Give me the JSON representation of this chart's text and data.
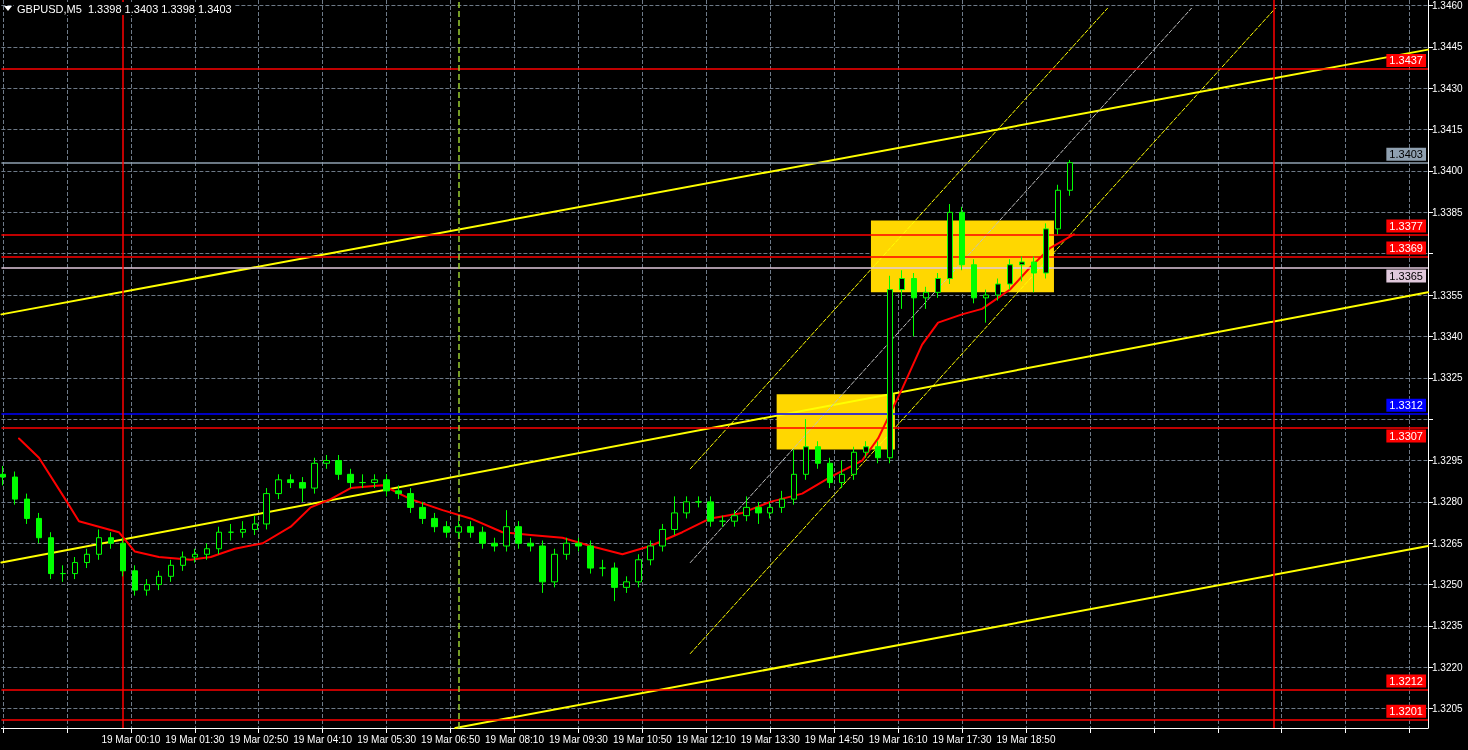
{
  "chart_data": {
    "type": "candlestick",
    "title": "GBPUSD,M5  1.3398 1.3403 1.3398 1.3403",
    "xlim": [
      "--03-18T21:28",
      "--03-20T03:13"
    ],
    "ylim": [
      1.3198,
      1.3462
    ],
    "xticks": [
      {
        "value": "--03-18T21:30",
        "label": null
      },
      {
        "value": "--03-18T22:50",
        "label": null
      },
      {
        "value": "--03-19T00:10",
        "label": "19 Mar 00:10"
      },
      {
        "value": "--03-19T01:30",
        "label": "19 Mar 01:30"
      },
      {
        "value": "--03-19T02:50",
        "label": "19 Mar 02:50"
      },
      {
        "value": "--03-19T04:10",
        "label": "19 Mar 04:10"
      },
      {
        "value": "--03-19T05:30",
        "label": "19 Mar 05:30"
      },
      {
        "value": "--03-19T06:50",
        "label": "19 Mar 06:50"
      },
      {
        "value": "--03-19T08:10",
        "label": "19 Mar 08:10"
      },
      {
        "value": "--03-19T09:30",
        "label": "19 Mar 09:30"
      },
      {
        "value": "--03-19T10:50",
        "label": "19 Mar 10:50"
      },
      {
        "value": "--03-19T12:10",
        "label": "19 Mar 12:10"
      },
      {
        "value": "--03-19T13:30",
        "label": "19 Mar 13:30"
      },
      {
        "value": "--03-19T14:50",
        "label": "19 Mar 14:50"
      },
      {
        "value": "--03-19T16:10",
        "label": "19 Mar 16:10"
      },
      {
        "value": "--03-19T17:30",
        "label": "19 Mar 17:30"
      },
      {
        "value": "--03-19T18:50",
        "label": "19 Mar 18:50"
      },
      {
        "value": "--03-19T20:10",
        "label": null
      },
      {
        "value": "--03-19T21:30",
        "label": null
      },
      {
        "value": "--03-19T22:50",
        "label": null
      },
      {
        "value": "--03-20T00:10",
        "label": null
      },
      {
        "value": "--03-20T01:30",
        "label": null
      },
      {
        "value": "--03-20T02:50",
        "label": null
      }
    ],
    "yticks": [
      1.3205,
      {
        "value": 1.322,
        "label": "1.3220"
      },
      1.3235,
      {
        "value": 1.325,
        "label": "1.3250"
      },
      1.3265,
      {
        "value": 1.328,
        "label": "1.3280"
      },
      1.3295,
      {
        "value": 1.331,
        "label": null
      },
      1.3325,
      {
        "value": 1.334,
        "label": "1.3340"
      },
      1.3355,
      {
        "value": 1.337,
        "label": null
      },
      1.3385,
      {
        "value": 1.34,
        "label": "1.3400"
      },
      1.3415,
      {
        "value": 1.343,
        "label": "1.3430"
      },
      1.3445,
      {
        "value": 1.346,
        "label": "1.3460"
      }
    ],
    "grid": true,
    "series": [
      {
        "type": "line",
        "color": "#ffd700",
        "x": [
          "--03-19T13:38",
          "--03-19T16:06"
        ],
        "values": [
          null,
          null
        ],
        "lower": [
          1.3299,
          1.3299
        ],
        "upper": [
          1.3319,
          1.3319
        ]
      },
      {
        "type": "line",
        "color": "#ffd700",
        "x": [
          "--03-19T15:36",
          "--03-19T19:25"
        ],
        "values": [
          null,
          null
        ],
        "lower": [
          1.3356,
          1.3356
        ],
        "upper": [
          1.3382,
          1.3382
        ]
      },
      {
        "type": "line",
        "color": "#ffff00",
        "line_style": "solid",
        "x": [
          "--03-18T21:28",
          "--03-20T03:13"
        ],
        "values": [
          1.3348,
          1.3444
        ]
      },
      {
        "type": "line",
        "color": "#ffff00",
        "line_style": "solid",
        "x": [
          "--03-18T21:28",
          "--03-20T03:13"
        ],
        "values": [
          1.3258,
          1.3356
        ]
      },
      {
        "type": "line",
        "color": "#ffff00",
        "line_style": "solid",
        "x": [
          "--03-19T06:56",
          "--03-20T03:13"
        ],
        "values": [
          1.3198,
          1.3264
        ]
      },
      {
        "type": "line",
        "color": "#ffff00",
        "line_style": "dashed",
        "x": [
          "--03-19T11:50",
          "--03-19T20:32"
        ],
        "values": [
          1.3292,
          1.3459
        ]
      },
      {
        "type": "line",
        "color": "#c0c0c0",
        "line_style": "dashed",
        "x": [
          "--03-19T11:50",
          "--03-19T22:17"
        ],
        "values": [
          1.3258,
          1.3459
        ]
      },
      {
        "type": "line",
        "color": "#ffff00",
        "line_style": "dashed",
        "x": [
          "--03-19T11:50",
          "--03-20T00:02"
        ],
        "values": [
          1.3225,
          1.3459
        ]
      },
      {
        "type": "line",
        "color": "#ff0000",
        "line_style": "solid",
        "x": [
          "--03-18T21:50",
          "--03-18T22:15",
          "--03-18T22:50",
          "--03-18T23:05",
          "--03-18T23:30",
          "--03-18T23:55",
          "--03-19T00:15",
          "--03-19T00:45",
          "--03-19T01:25",
          "--03-19T01:50",
          "--03-19T02:20",
          "--03-19T02:55",
          "--03-19T03:30",
          "--03-19T03:55",
          "--03-19T04:20",
          "--03-19T04:45",
          "--03-19T05:25",
          "--03-19T06:00",
          "--03-19T06:40",
          "--03-19T07:15",
          "--03-19T07:55",
          "--03-19T08:30",
          "--03-19T09:10",
          "--03-19T09:45",
          "--03-19T10:25",
          "--03-19T11:00",
          "--03-19T11:40",
          "--03-19T12:15",
          "--03-19T12:55",
          "--03-19T13:30",
          "--03-19T14:10",
          "--03-19T14:45",
          "--03-19T15:25",
          "--03-19T15:45",
          "--03-19T16:15",
          "--03-19T16:40",
          "--03-19T17:00",
          "--03-19T17:30",
          "--03-19T17:55",
          "--03-19T18:15",
          "--03-19T18:30",
          "--03-19T18:55",
          "--03-19T19:20",
          "--03-19T19:50"
        ],
        "values": [
          1.3303,
          1.3296,
          1.328,
          1.3273,
          1.3271,
          1.3269,
          1.3262,
          1.326,
          1.3259,
          1.326,
          1.3263,
          1.3265,
          1.3271,
          1.3278,
          1.3281,
          1.3285,
          1.3286,
          1.3281,
          1.3277,
          1.3274,
          1.3269,
          1.3268,
          1.3267,
          1.3264,
          1.3261,
          1.3264,
          1.3269,
          1.3274,
          1.3276,
          1.328,
          1.3283,
          1.3289,
          1.3295,
          1.3303,
          1.3321,
          1.3337,
          1.3345,
          1.3348,
          1.335,
          1.3354,
          1.3357,
          1.3365,
          1.3372,
          1.3377
        ]
      },
      {
        "color": "#00ff00",
        "x": [
          "--03-18T21:30",
          "--03-18T21:45",
          "--03-18T22:00",
          "--03-18T22:15",
          "--03-18T22:30",
          "--03-18T22:45",
          "--03-18T23:00",
          "--03-18T23:15",
          "--03-18T23:30",
          "--03-18T23:45",
          "--03-19T00:00",
          "--03-19T00:15",
          "--03-19T00:30",
          "--03-19T00:45",
          "--03-19T01:00",
          "--03-19T01:15",
          "--03-19T01:30",
          "--03-19T01:45",
          "--03-19T02:00",
          "--03-19T02:15",
          "--03-19T02:30",
          "--03-19T02:45",
          "--03-19T03:00",
          "--03-19T03:15",
          "--03-19T03:30",
          "--03-19T03:45",
          "--03-19T04:00",
          "--03-19T04:15",
          "--03-19T04:30",
          "--03-19T04:45",
          "--03-19T05:00",
          "--03-19T05:15",
          "--03-19T05:30",
          "--03-19T05:45",
          "--03-19T06:00",
          "--03-19T06:15",
          "--03-19T06:30",
          "--03-19T06:45",
          "--03-19T07:00",
          "--03-19T07:15",
          "--03-19T07:30",
          "--03-19T07:45",
          "--03-19T08:00",
          "--03-19T08:15",
          "--03-19T08:30",
          "--03-19T08:45",
          "--03-19T09:00",
          "--03-19T09:15",
          "--03-19T09:30",
          "--03-19T09:45",
          "--03-19T10:00",
          "--03-19T10:15",
          "--03-19T10:30",
          "--03-19T10:45",
          "--03-19T11:00",
          "--03-19T11:15",
          "--03-19T11:30",
          "--03-19T11:45",
          "--03-19T12:00",
          "--03-19T12:15",
          "--03-19T12:30",
          "--03-19T12:45",
          "--03-19T13:00",
          "--03-19T13:15",
          "--03-19T13:30",
          "--03-19T13:45",
          "--03-19T14:00",
          "--03-19T14:15",
          "--03-19T14:30",
          "--03-19T14:45",
          "--03-19T15:00",
          "--03-19T15:15",
          "--03-19T15:30",
          "--03-19T15:45",
          "--03-19T16:00",
          "--03-19T16:15",
          "--03-19T16:30",
          "--03-19T16:45",
          "--03-19T17:00",
          "--03-19T17:15",
          "--03-19T17:30",
          "--03-19T17:45",
          "--03-19T18:00",
          "--03-19T18:15",
          "--03-19T18:30",
          "--03-19T18:45",
          "--03-19T19:00",
          "--03-19T19:15",
          "--03-19T19:30",
          "--03-19T19:45"
        ],
        "ohlc": [
          [
            1.329,
            1.3293,
            1.3286,
            1.3289
          ],
          [
            1.3289,
            1.3291,
            1.3279,
            1.3281
          ],
          [
            1.3281,
            1.3283,
            1.3272,
            1.3274
          ],
          [
            1.3274,
            1.3276,
            1.3265,
            1.3267
          ],
          [
            1.3267,
            1.3269,
            1.3252,
            1.3254
          ],
          [
            1.3254,
            1.3257,
            1.3251,
            1.3254
          ],
          [
            1.3254,
            1.326,
            1.3252,
            1.3258
          ],
          [
            1.3258,
            1.3263,
            1.3256,
            1.3261
          ],
          [
            1.3261,
            1.327,
            1.3259,
            1.3267
          ],
          [
            1.3267,
            1.3269,
            1.3263,
            1.3265
          ],
          [
            1.3265,
            1.3267,
            1.3253,
            1.3255
          ],
          [
            1.3255,
            1.3257,
            1.3246,
            1.3248
          ],
          [
            1.3248,
            1.3252,
            1.3246,
            1.325
          ],
          [
            1.325,
            1.3255,
            1.3248,
            1.3253
          ],
          [
            1.3253,
            1.3259,
            1.3251,
            1.3257
          ],
          [
            1.3257,
            1.3262,
            1.3255,
            1.326
          ],
          [
            1.326,
            1.3263,
            1.3258,
            1.3261
          ],
          [
            1.3261,
            1.3265,
            1.3259,
            1.3263
          ],
          [
            1.3263,
            1.3271,
            1.3261,
            1.3269
          ],
          [
            1.3269,
            1.3272,
            1.3266,
            1.3269
          ],
          [
            1.3269,
            1.3273,
            1.3267,
            1.327
          ],
          [
            1.327,
            1.3275,
            1.3268,
            1.3272
          ],
          [
            1.3272,
            1.3285,
            1.327,
            1.3283
          ],
          [
            1.3283,
            1.329,
            1.3281,
            1.3288
          ],
          [
            1.3288,
            1.329,
            1.3285,
            1.3287
          ],
          [
            1.3287,
            1.3289,
            1.328,
            1.3285
          ],
          [
            1.3285,
            1.3296,
            1.3283,
            1.3294
          ],
          [
            1.3294,
            1.3297,
            1.3292,
            1.3295
          ],
          [
            1.3295,
            1.3297,
            1.3288,
            1.329
          ],
          [
            1.329,
            1.3292,
            1.3285,
            1.3287
          ],
          [
            1.3287,
            1.329,
            1.3285,
            1.3287
          ],
          [
            1.3287,
            1.329,
            1.3285,
            1.3288
          ],
          [
            1.3288,
            1.329,
            1.3282,
            1.3284
          ],
          [
            1.3284,
            1.3286,
            1.3281,
            1.3283
          ],
          [
            1.3283,
            1.3285,
            1.3276,
            1.3278
          ],
          [
            1.3278,
            1.328,
            1.3272,
            1.3274
          ],
          [
            1.3274,
            1.3276,
            1.3269,
            1.3271
          ],
          [
            1.3271,
            1.3273,
            1.3267,
            1.3269
          ],
          [
            1.3269,
            1.3273,
            1.3267,
            1.3271
          ],
          [
            1.3271,
            1.3273,
            1.3267,
            1.3269
          ],
          [
            1.3269,
            1.3271,
            1.3263,
            1.3265
          ],
          [
            1.3265,
            1.3267,
            1.3262,
            1.3264
          ],
          [
            1.3264,
            1.3277,
            1.3262,
            1.3271
          ],
          [
            1.3271,
            1.3273,
            1.3263,
            1.3265
          ],
          [
            1.3265,
            1.3267,
            1.3262,
            1.3264
          ],
          [
            1.3264,
            1.3266,
            1.3247,
            1.3251
          ],
          [
            1.3251,
            1.3263,
            1.3249,
            1.3261
          ],
          [
            1.3261,
            1.3267,
            1.3259,
            1.3265
          ],
          [
            1.3265,
            1.3267,
            1.3262,
            1.3264
          ],
          [
            1.3264,
            1.3266,
            1.3254,
            1.3256
          ],
          [
            1.3256,
            1.3259,
            1.3253,
            1.3256
          ],
          [
            1.3256,
            1.3258,
            1.3244,
            1.3249
          ],
          [
            1.3249,
            1.3253,
            1.3247,
            1.3251
          ],
          [
            1.3251,
            1.3261,
            1.3249,
            1.3259
          ],
          [
            1.3259,
            1.3266,
            1.3257,
            1.3264
          ],
          [
            1.3264,
            1.3272,
            1.3262,
            1.327
          ],
          [
            1.327,
            1.3282,
            1.3268,
            1.3276
          ],
          [
            1.3276,
            1.3282,
            1.3274,
            1.328
          ],
          [
            1.328,
            1.3282,
            1.3278,
            1.328
          ],
          [
            1.328,
            1.3282,
            1.3271,
            1.3273
          ],
          [
            1.3273,
            1.3275,
            1.3271,
            1.3273
          ],
          [
            1.3273,
            1.3277,
            1.3271,
            1.3275
          ],
          [
            1.3275,
            1.3282,
            1.3273,
            1.3278
          ],
          [
            1.3278,
            1.328,
            1.3272,
            1.3276
          ],
          [
            1.3276,
            1.328,
            1.3274,
            1.3278
          ],
          [
            1.3278,
            1.3284,
            1.3276,
            1.3281
          ],
          [
            1.3281,
            1.3299,
            1.3279,
            1.329
          ],
          [
            1.329,
            1.331,
            1.3288,
            1.33
          ],
          [
            1.33,
            1.3302,
            1.3292,
            1.3294
          ],
          [
            1.3294,
            1.3296,
            1.3285,
            1.3287
          ],
          [
            1.3287,
            1.3295,
            1.3285,
            1.329
          ],
          [
            1.329,
            1.33,
            1.3288,
            1.3298
          ],
          [
            1.3298,
            1.3302,
            1.3296,
            1.33
          ],
          [
            1.33,
            1.3302,
            1.3294,
            1.3296
          ],
          [
            1.3296,
            1.3362,
            1.3294,
            1.3357
          ],
          [
            1.3357,
            1.3364,
            1.335,
            1.3361
          ],
          [
            1.3361,
            1.3363,
            1.334,
            1.3354
          ],
          [
            1.3354,
            1.3358,
            1.335,
            1.3356
          ],
          [
            1.3356,
            1.3363,
            1.3354,
            1.3361
          ],
          [
            1.3361,
            1.3388,
            1.3359,
            1.3385
          ],
          [
            1.3385,
            1.3387,
            1.3364,
            1.3366
          ],
          [
            1.3366,
            1.3368,
            1.3352,
            1.3354
          ],
          [
            1.3354,
            1.3357,
            1.3345,
            1.3355
          ],
          [
            1.3355,
            1.3361,
            1.3353,
            1.3359
          ],
          [
            1.3359,
            1.3368,
            1.3357,
            1.3366
          ],
          [
            1.3366,
            1.3369,
            1.336,
            1.3367
          ],
          [
            1.3367,
            1.3369,
            1.3356,
            1.3363
          ],
          [
            1.3363,
            1.3381,
            1.3361,
            1.3379
          ],
          [
            1.3379,
            1.3395,
            1.3377,
            1.3393
          ],
          [
            1.3393,
            1.3404,
            1.3391,
            1.3403
          ]
        ]
      }
    ],
    "ref_lines": [
      {
        "axis": "y",
        "value": 1.3437,
        "label": "1.3437",
        "color": "#ff0000"
      },
      {
        "axis": "y",
        "value": 1.3403,
        "label": "1.3403",
        "color": "#8fa0b0"
      },
      {
        "axis": "y",
        "value": 1.3377,
        "label": "1.3377",
        "color": "#ff0000"
      },
      {
        "axis": "y",
        "value": 1.3369,
        "label": "1.3369",
        "color": "#ff0000"
      },
      {
        "axis": "y",
        "value": 1.3365,
        "label": "1.3365",
        "color": "#e0c8dc"
      },
      {
        "axis": "y",
        "value": 1.3312,
        "label": "1.3312",
        "color": "#0000ff"
      },
      {
        "axis": "y",
        "value": 1.3307,
        "label": "1.3307",
        "color": "#ff0000"
      },
      {
        "axis": "y",
        "value": 1.3212,
        "label": "1.3212",
        "color": "#ff0000"
      },
      {
        "axis": "y",
        "value": 1.3201,
        "label": "1.3201",
        "color": "#ff0000"
      },
      {
        "axis": "x",
        "value": "--03-19T00:00",
        "color": "#ff0000"
      },
      {
        "axis": "x",
        "value": "--03-20T00:00",
        "color": "#ff0000"
      },
      {
        "axis": "x",
        "value": "--03-19T07:00",
        "color": "#9acd32",
        "line_style": "dashed"
      }
    ]
  }
}
